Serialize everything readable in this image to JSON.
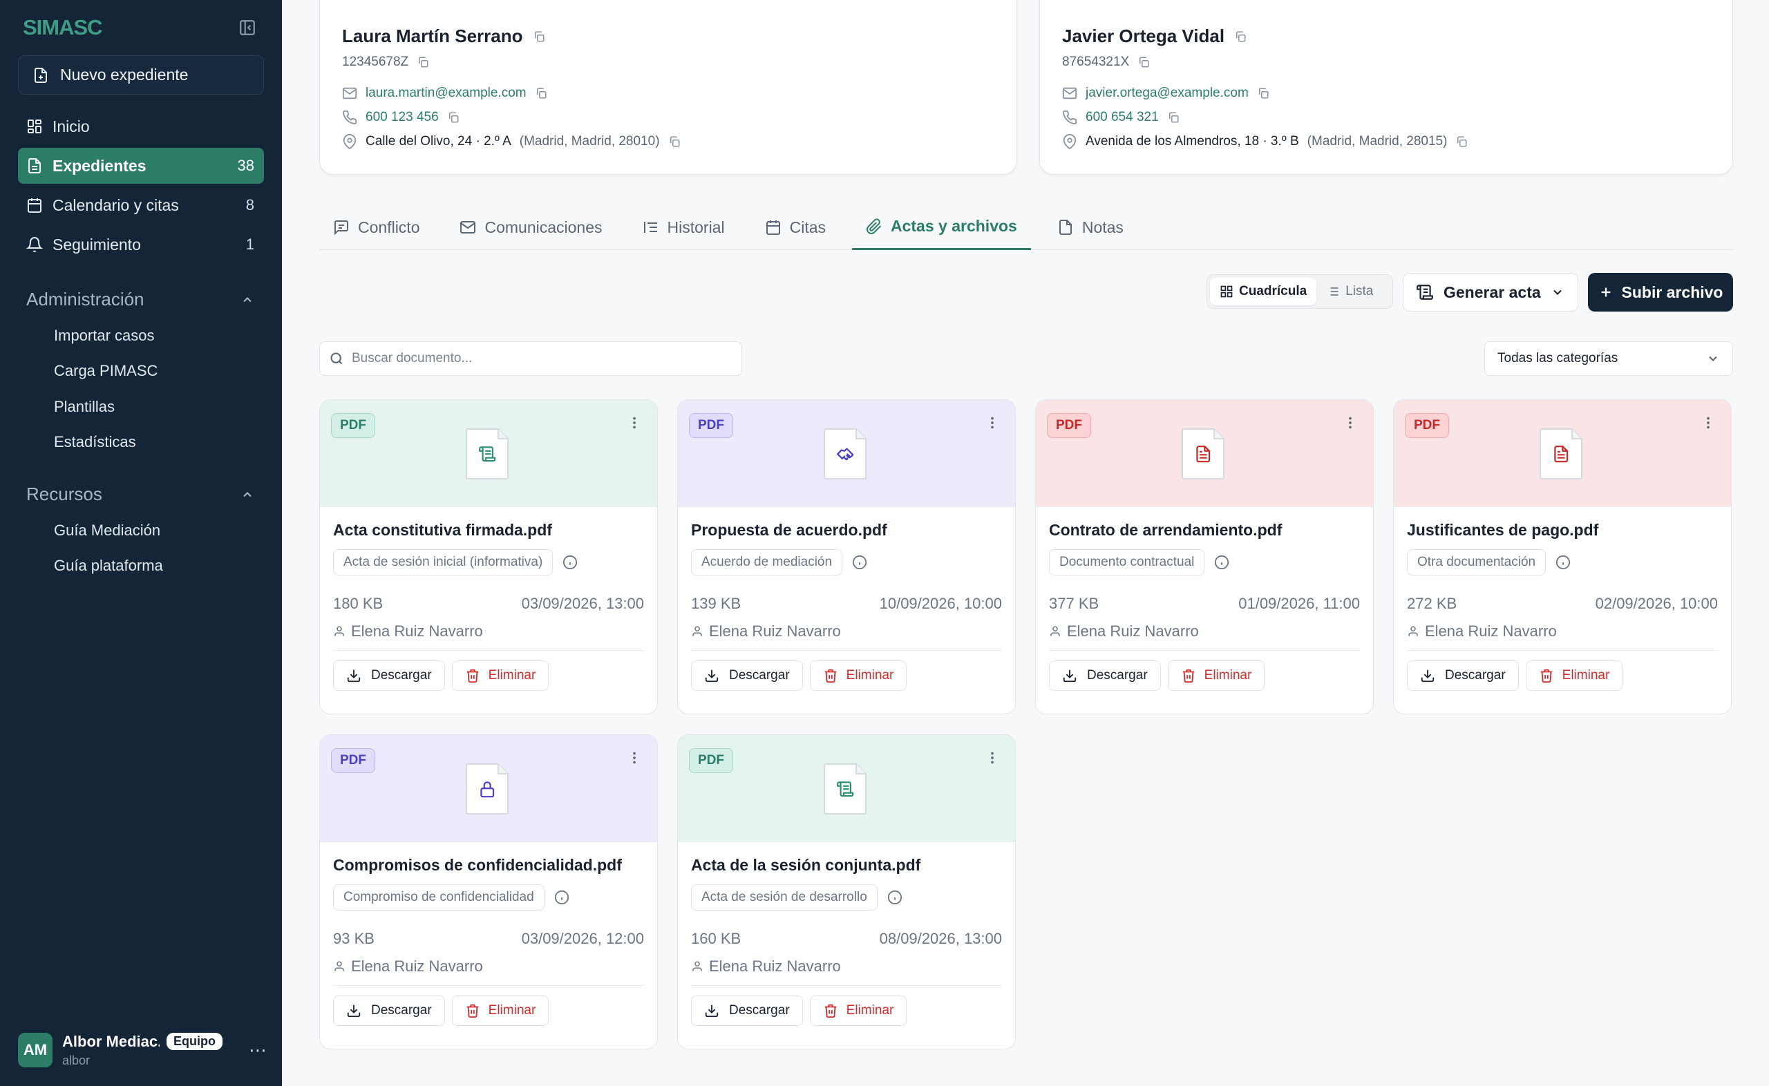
{
  "sidebar": {
    "brand": "SIMASC",
    "new_button": "Nuevo expediente",
    "nav": [
      {
        "label": "Inicio",
        "count": "",
        "icon": "dashboard-icon"
      },
      {
        "label": "Expedientes",
        "count": "38",
        "icon": "file-text-icon"
      },
      {
        "label": "Calendario y citas",
        "count": "8",
        "icon": "calendar-icon"
      },
      {
        "label": "Seguimiento",
        "count": "1",
        "icon": "bell-icon"
      }
    ],
    "admin_title": "Administración",
    "admin_items": [
      "Importar casos",
      "Carga PIMASC",
      "Plantillas",
      "Estadísticas"
    ],
    "resources_title": "Recursos",
    "resources_items": [
      "Guía Mediación",
      "Guía plataforma"
    ],
    "user": {
      "initials": "AM",
      "name": "Albor Mediac...",
      "badge": "Equipo",
      "sub": "albor"
    }
  },
  "parties": [
    {
      "name": "Laura Martín Serrano",
      "id": "12345678Z",
      "email": "laura.martin@example.com",
      "phone": "600 123 456",
      "address": "Calle del Olivo, 24 · 2.º A",
      "location": "(Madrid, Madrid, 28010)"
    },
    {
      "name": "Javier Ortega Vidal",
      "id": "87654321X",
      "email": "javier.ortega@example.com",
      "phone": "600 654 321",
      "address": "Avenida de los Almendros, 18 · 3.º B",
      "location": "(Madrid, Madrid, 28015)"
    }
  ],
  "tabs": [
    {
      "label": "Conflicto",
      "icon": "message-square-icon"
    },
    {
      "label": "Comunicaciones",
      "icon": "mail-icon"
    },
    {
      "label": "Historial",
      "icon": "list-icon"
    },
    {
      "label": "Citas",
      "icon": "calendar-icon"
    },
    {
      "label": "Actas y archivos",
      "icon": "paperclip-icon"
    },
    {
      "label": "Notas",
      "icon": "note-icon"
    }
  ],
  "active_tab": "Actas y archivos",
  "toolbar": {
    "grid_label": "Cuadrícula",
    "list_label": "Lista",
    "generate_label": "Generar acta",
    "upload_label": "Subir archivo",
    "search_placeholder": "Buscar documento...",
    "category_selected": "Todas las categorías"
  },
  "colors": {
    "accent": "#2b7d67",
    "sidebar": "#132537",
    "danger": "#d42b2b"
  },
  "files": [
    {
      "type": "PDF",
      "theme": "teal",
      "icon": "scroll-icon",
      "name": "Acta constitutiva firmada.pdf",
      "category": "Acta de sesión inicial (informativa)",
      "size": "180 KB",
      "date": "03/09/2026, 13:00",
      "author": "Elena Ruiz Navarro"
    },
    {
      "type": "PDF",
      "theme": "purple",
      "icon": "handshake-icon",
      "name": "Propuesta de acuerdo.pdf",
      "category": "Acuerdo de mediación",
      "size": "139 KB",
      "date": "10/09/2026, 10:00",
      "author": "Elena Ruiz Navarro"
    },
    {
      "type": "PDF",
      "theme": "red",
      "icon": "document-icon",
      "name": "Contrato de arrendamiento.pdf",
      "category": "Documento contractual",
      "size": "377 KB",
      "date": "01/09/2026, 11:00",
      "author": "Elena Ruiz Navarro"
    },
    {
      "type": "PDF",
      "theme": "red",
      "icon": "document-icon",
      "name": "Justificantes de pago.pdf",
      "category": "Otra documentación",
      "size": "272 KB",
      "date": "02/09/2026, 10:00",
      "author": "Elena Ruiz Navarro"
    },
    {
      "type": "PDF",
      "theme": "purple",
      "icon": "lock-icon",
      "name": "Compromisos de confidencialidad.pdf",
      "category": "Compromiso de confidencialidad",
      "size": "93 KB",
      "date": "03/09/2026, 12:00",
      "author": "Elena Ruiz Navarro"
    },
    {
      "type": "PDF",
      "theme": "teal",
      "icon": "scroll-icon",
      "name": "Acta de la sesión conjunta.pdf",
      "category": "Acta de sesión de desarrollo",
      "size": "160 KB",
      "date": "08/09/2026, 13:00",
      "author": "Elena Ruiz Navarro"
    }
  ],
  "file_actions": {
    "download": "Descargar",
    "delete": "Eliminar"
  }
}
